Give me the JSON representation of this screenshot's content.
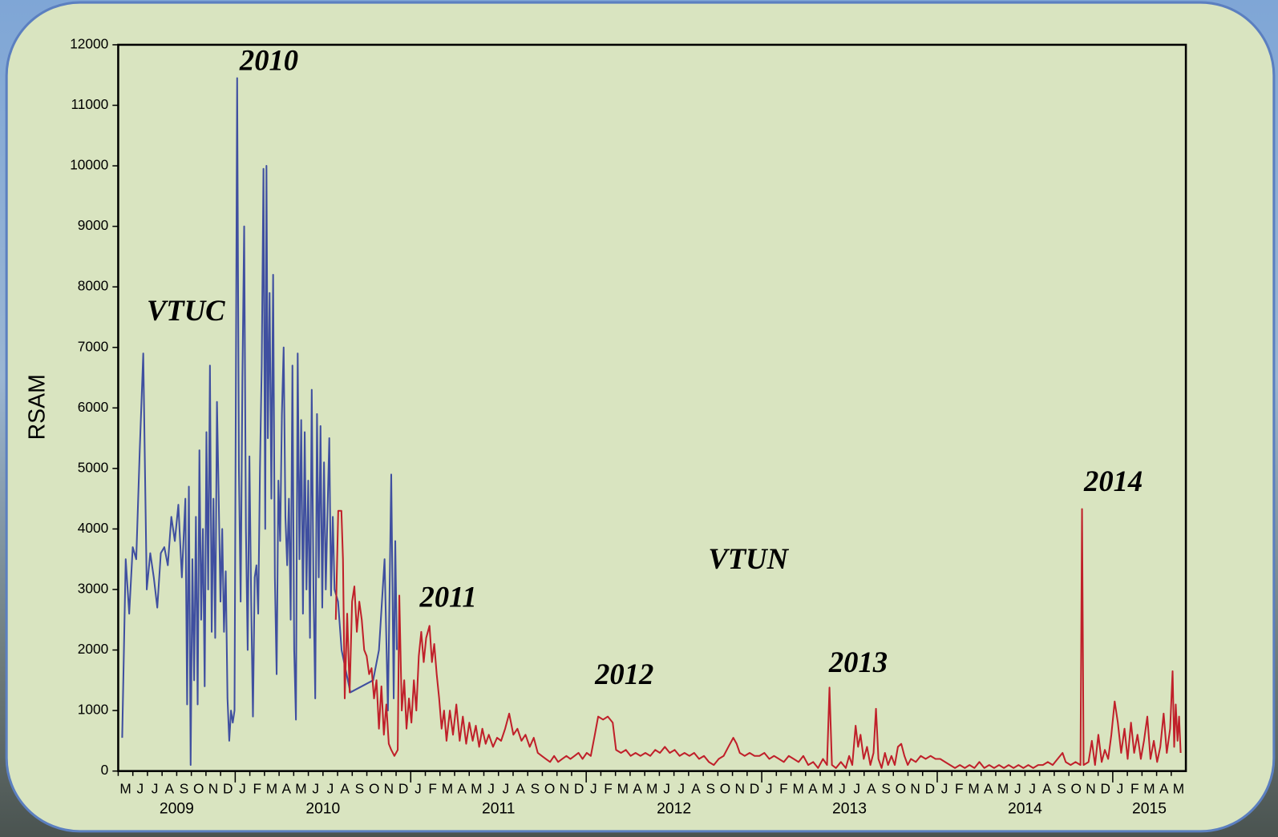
{
  "chart_data": {
    "type": "line",
    "ylabel": "RSAM",
    "xlim": [
      2009.3333,
      2015.4167
    ],
    "ylim": [
      0,
      12000
    ],
    "yticks": [
      0,
      1000,
      2000,
      3000,
      4000,
      5000,
      6000,
      7000,
      8000,
      9000,
      10000,
      11000,
      12000
    ],
    "xticks": [
      {
        "value": 2009.3333,
        "label": "M"
      },
      {
        "value": 2009.4167,
        "label": "J"
      },
      {
        "value": 2009.5,
        "label": "J"
      },
      {
        "value": 2009.5833,
        "label": "A"
      },
      {
        "value": 2009.6667,
        "label": "S"
      },
      {
        "value": 2009.75,
        "label": "O"
      },
      {
        "value": 2009.8333,
        "label": "N"
      },
      {
        "value": 2009.9167,
        "label": "D"
      },
      {
        "value": 2010.0,
        "label": "J"
      },
      {
        "value": 2010.0833,
        "label": "F"
      },
      {
        "value": 2010.1667,
        "label": "M"
      },
      {
        "value": 2010.25,
        "label": "A"
      },
      {
        "value": 2010.3333,
        "label": "M"
      },
      {
        "value": 2010.4167,
        "label": "J"
      },
      {
        "value": 2010.5,
        "label": "J"
      },
      {
        "value": 2010.5833,
        "label": "A"
      },
      {
        "value": 2010.6667,
        "label": "S"
      },
      {
        "value": 2010.75,
        "label": "O"
      },
      {
        "value": 2010.8333,
        "label": "N"
      },
      {
        "value": 2010.9167,
        "label": "D"
      },
      {
        "value": 2011.0,
        "label": "J"
      },
      {
        "value": 2011.0833,
        "label": "F"
      },
      {
        "value": 2011.1667,
        "label": "M"
      },
      {
        "value": 2011.25,
        "label": "A"
      },
      {
        "value": 2011.3333,
        "label": "M"
      },
      {
        "value": 2011.4167,
        "label": "J"
      },
      {
        "value": 2011.5,
        "label": "J"
      },
      {
        "value": 2011.5833,
        "label": "A"
      },
      {
        "value": 2011.6667,
        "label": "S"
      },
      {
        "value": 2011.75,
        "label": "O"
      },
      {
        "value": 2011.8333,
        "label": "N"
      },
      {
        "value": 2011.9167,
        "label": "D"
      },
      {
        "value": 2012.0,
        "label": "J"
      },
      {
        "value": 2012.0833,
        "label": "F"
      },
      {
        "value": 2012.1667,
        "label": "M"
      },
      {
        "value": 2012.25,
        "label": "A"
      },
      {
        "value": 2012.3333,
        "label": "M"
      },
      {
        "value": 2012.4167,
        "label": "J"
      },
      {
        "value": 2012.5,
        "label": "J"
      },
      {
        "value": 2012.5833,
        "label": "A"
      },
      {
        "value": 2012.6667,
        "label": "S"
      },
      {
        "value": 2012.75,
        "label": "O"
      },
      {
        "value": 2012.8333,
        "label": "N"
      },
      {
        "value": 2012.9167,
        "label": "D"
      },
      {
        "value": 2013.0,
        "label": "J"
      },
      {
        "value": 2013.0833,
        "label": "F"
      },
      {
        "value": 2013.1667,
        "label": "M"
      },
      {
        "value": 2013.25,
        "label": "A"
      },
      {
        "value": 2013.3333,
        "label": "M"
      },
      {
        "value": 2013.4167,
        "label": "J"
      },
      {
        "value": 2013.5,
        "label": "J"
      },
      {
        "value": 2013.5833,
        "label": "A"
      },
      {
        "value": 2013.6667,
        "label": "S"
      },
      {
        "value": 2013.75,
        "label": "O"
      },
      {
        "value": 2013.8333,
        "label": "N"
      },
      {
        "value": 2013.9167,
        "label": "D"
      },
      {
        "value": 2014.0,
        "label": "J"
      },
      {
        "value": 2014.0833,
        "label": "F"
      },
      {
        "value": 2014.1667,
        "label": "M"
      },
      {
        "value": 2014.25,
        "label": "A"
      },
      {
        "value": 2014.3333,
        "label": "M"
      },
      {
        "value": 2014.4167,
        "label": "J"
      },
      {
        "value": 2014.5,
        "label": "J"
      },
      {
        "value": 2014.5833,
        "label": "A"
      },
      {
        "value": 2014.6667,
        "label": "S"
      },
      {
        "value": 2014.75,
        "label": "O"
      },
      {
        "value": 2014.8333,
        "label": "N"
      },
      {
        "value": 2014.9167,
        "label": "D"
      },
      {
        "value": 2015.0,
        "label": "J"
      },
      {
        "value": 2015.0833,
        "label": "F"
      },
      {
        "value": 2015.1667,
        "label": "M"
      },
      {
        "value": 2015.25,
        "label": "A"
      },
      {
        "value": 2015.3333,
        "label": "M"
      }
    ],
    "years": [
      "2009",
      "2010",
      "2011",
      "2012",
      "2013",
      "2014",
      "2015"
    ],
    "annotations": [
      "2010",
      "2011",
      "2012",
      "2013",
      "2014"
    ],
    "series": [
      {
        "name": "VTUC",
        "color": "#3f4fa0",
        "x": [
          2009.356,
          2009.376,
          2009.396,
          2009.416,
          2009.436,
          2009.456,
          2009.476,
          2009.496,
          2009.516,
          2009.536,
          2009.556,
          2009.576,
          2009.596,
          2009.616,
          2009.636,
          2009.656,
          2009.676,
          2009.696,
          2009.716,
          2009.726,
          2009.736,
          2009.746,
          2009.756,
          2009.766,
          2009.776,
          2009.786,
          2009.796,
          2009.806,
          2009.816,
          2009.826,
          2009.836,
          2009.846,
          2009.856,
          2009.866,
          2009.876,
          2009.886,
          2009.896,
          2009.906,
          2009.916,
          2009.926,
          2009.936,
          2009.946,
          2009.956,
          2009.966,
          2009.976,
          2009.986,
          2009.996,
          2010.011,
          2010.021,
          2010.031,
          2010.041,
          2010.051,
          2010.061,
          2010.071,
          2010.081,
          2010.091,
          2010.101,
          2010.111,
          2010.121,
          2010.131,
          2010.141,
          2010.151,
          2010.161,
          2010.171,
          2010.178,
          2010.186,
          2010.196,
          2010.206,
          2010.216,
          2010.226,
          2010.236,
          2010.246,
          2010.256,
          2010.266,
          2010.276,
          2010.286,
          2010.296,
          2010.306,
          2010.316,
          2010.326,
          2010.336,
          2010.346,
          2010.356,
          2010.366,
          2010.376,
          2010.386,
          2010.396,
          2010.406,
          2010.416,
          2010.426,
          2010.436,
          2010.446,
          2010.456,
          2010.466,
          2010.476,
          2010.486,
          2010.496,
          2010.506,
          2010.516,
          2010.526,
          2010.536,
          2010.546,
          2010.556,
          2010.566,
          2010.586,
          2010.606,
          2010.656,
          2010.786,
          2010.819,
          2010.851,
          2010.87,
          2010.889,
          2010.903,
          2010.912,
          2010.921
        ],
        "values": [
          550,
          3500,
          2600,
          3700,
          3500,
          5300,
          6900,
          3000,
          3600,
          3200,
          2700,
          3600,
          3700,
          3400,
          4200,
          3800,
          4400,
          3200,
          4500,
          1100,
          4700,
          100,
          3500,
          1500,
          4200,
          1100,
          5300,
          2500,
          4000,
          1400,
          5600,
          3000,
          6700,
          2300,
          4500,
          2200,
          6100,
          4500,
          2800,
          4000,
          2300,
          3300,
          1200,
          500,
          1000,
          800,
          1000,
          11450,
          5000,
          2800,
          6500,
          9000,
          4000,
          2000,
          5200,
          2800,
          900,
          3200,
          3400,
          2600,
          5000,
          6700,
          9950,
          4000,
          10000,
          5500,
          7900,
          4500,
          8200,
          3200,
          1600,
          4800,
          3800,
          5900,
          7000,
          4200,
          3400,
          4500,
          2500,
          6700,
          2000,
          850,
          6900,
          3500,
          5800,
          2600,
          5600,
          3000,
          4800,
          2200,
          6300,
          3000,
          1200,
          5900,
          3200,
          5700,
          2700,
          5100,
          3000,
          4300,
          5500,
          2900,
          4200,
          3000,
          2800,
          2000,
          1300,
          1500,
          2000,
          3500,
          1000,
          4900,
          1200,
          3800,
          2000
        ]
      },
      {
        "name": "VTUN",
        "color": "#c0202a",
        "x": [
          2010.573,
          2010.587,
          2010.605,
          2010.614,
          2010.624,
          2010.638,
          2010.652,
          2010.666,
          2010.679,
          2010.693,
          2010.707,
          2010.721,
          2010.735,
          2010.749,
          2010.763,
          2010.777,
          2010.791,
          2010.805,
          2010.819,
          2010.833,
          2010.847,
          2010.861,
          2010.875,
          2010.889,
          2010.907,
          2010.926,
          2010.935,
          2010.949,
          2010.963,
          2010.976,
          2010.99,
          2011.004,
          2011.018,
          2011.032,
          2011.046,
          2011.06,
          2011.074,
          2011.088,
          2011.107,
          2011.121,
          2011.134,
          2011.148,
          2011.162,
          2011.176,
          2011.19,
          2011.204,
          2011.223,
          2011.241,
          2011.26,
          2011.279,
          2011.297,
          2011.316,
          2011.334,
          2011.353,
          2011.371,
          2011.39,
          2011.408,
          2011.427,
          2011.445,
          2011.469,
          2011.492,
          2011.515,
          2011.538,
          2011.561,
          2011.585,
          2011.608,
          2011.631,
          2011.654,
          2011.678,
          2011.701,
          2011.724,
          2011.747,
          2011.77,
          2011.794,
          2011.817,
          2011.84,
          2011.863,
          2011.887,
          2011.91,
          2011.933,
          2011.956,
          2011.979,
          2012.003,
          2012.026,
          2012.049,
          2012.068,
          2012.096,
          2012.123,
          2012.151,
          2012.17,
          2012.198,
          2012.226,
          2012.253,
          2012.281,
          2012.309,
          2012.337,
          2012.365,
          2012.393,
          2012.42,
          2012.448,
          2012.476,
          2012.504,
          2012.532,
          2012.56,
          2012.588,
          2012.615,
          2012.643,
          2012.671,
          2012.699,
          2012.727,
          2012.755,
          2012.783,
          2012.81,
          2012.838,
          2012.857,
          2012.875,
          2012.903,
          2012.931,
          2012.959,
          2012.987,
          2013.015,
          2013.043,
          2013.07,
          2013.098,
          2013.126,
          2013.154,
          2013.182,
          2013.21,
          2013.237,
          2013.265,
          2013.293,
          2013.321,
          2013.349,
          2013.372,
          2013.386,
          2013.4,
          2013.423,
          2013.451,
          2013.479,
          2013.498,
          2013.516,
          2013.535,
          2013.549,
          2013.563,
          2013.581,
          2013.6,
          2013.619,
          2013.637,
          2013.651,
          2013.665,
          2013.683,
          2013.702,
          2013.72,
          2013.739,
          2013.758,
          2013.776,
          2013.795,
          2013.813,
          2013.832,
          2013.85,
          2013.878,
          2013.906,
          2013.934,
          2013.962,
          2013.99,
          2014.017,
          2014.045,
          2014.073,
          2014.101,
          2014.129,
          2014.157,
          2014.184,
          2014.212,
          2014.24,
          2014.268,
          2014.296,
          2014.324,
          2014.352,
          2014.38,
          2014.407,
          2014.435,
          2014.463,
          2014.491,
          2014.519,
          2014.547,
          2014.575,
          2014.602,
          2014.63,
          2014.658,
          2014.686,
          2014.714,
          2014.732,
          2014.76,
          2014.788,
          2014.816,
          2014.825,
          2014.834,
          2014.862,
          2014.881,
          2014.899,
          2014.918,
          2014.937,
          2014.955,
          2014.974,
          2014.992,
          2015.011,
          2015.029,
          2015.048,
          2015.067,
          2015.085,
          2015.104,
          2015.122,
          2015.141,
          2015.16,
          2015.178,
          2015.197,
          2015.215,
          2015.234,
          2015.253,
          2015.271,
          2015.29,
          2015.308,
          2015.327,
          2015.341,
          2015.35,
          2015.359,
          2015.369,
          2015.378,
          2015.387
        ],
        "values": [
          2500,
          4300,
          4300,
          3500,
          1200,
          2600,
          1300,
          2800,
          3050,
          2300,
          2800,
          2500,
          2000,
          1900,
          1600,
          1700,
          1200,
          1500,
          700,
          1400,
          600,
          1100,
          450,
          350,
          250,
          350,
          2900,
          1000,
          1500,
          700,
          1200,
          800,
          1500,
          1000,
          1900,
          2300,
          1800,
          2200,
          2400,
          1800,
          2100,
          1600,
          1200,
          700,
          1000,
          500,
          1000,
          600,
          1100,
          500,
          900,
          450,
          800,
          500,
          750,
          400,
          700,
          450,
          600,
          400,
          550,
          500,
          700,
          950,
          600,
          700,
          500,
          600,
          400,
          550,
          300,
          250,
          200,
          150,
          250,
          150,
          200,
          250,
          200,
          250,
          300,
          200,
          300,
          250,
          600,
          900,
          850,
          900,
          800,
          350,
          300,
          350,
          250,
          300,
          250,
          300,
          250,
          350,
          300,
          400,
          300,
          350,
          250,
          300,
          250,
          300,
          200,
          250,
          150,
          100,
          200,
          250,
          400,
          550,
          450,
          300,
          250,
          300,
          250,
          250,
          300,
          200,
          250,
          200,
          150,
          250,
          200,
          150,
          250,
          100,
          150,
          50,
          200,
          100,
          1380,
          100,
          50,
          150,
          50,
          250,
          100,
          750,
          400,
          600,
          200,
          400,
          100,
          300,
          1030,
          200,
          50,
          300,
          100,
          250,
          100,
          400,
          450,
          250,
          100,
          200,
          150,
          250,
          200,
          250,
          200,
          200,
          150,
          100,
          50,
          100,
          50,
          100,
          50,
          150,
          50,
          100,
          50,
          100,
          50,
          100,
          50,
          100,
          50,
          100,
          50,
          100,
          100,
          150,
          100,
          200,
          300,
          150,
          100,
          150,
          100,
          4330,
          100,
          150,
          500,
          100,
          600,
          150,
          350,
          200,
          600,
          1150,
          800,
          300,
          700,
          200,
          800,
          300,
          600,
          200,
          500,
          900,
          200,
          500,
          150,
          400,
          950,
          300,
          700,
          1650,
          400,
          1100,
          500,
          900,
          300
        ]
      }
    ]
  }
}
